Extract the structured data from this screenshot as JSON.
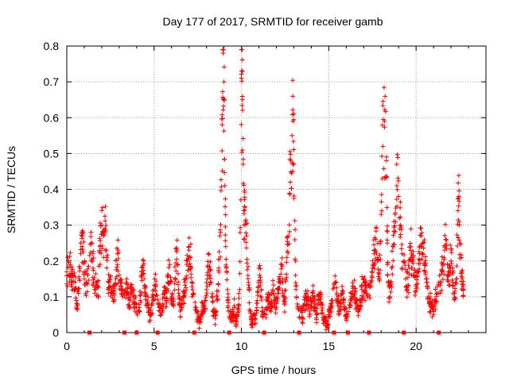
{
  "chart_data": {
    "type": "scatter",
    "title": "Day 177 of 2017, SRMTID for receiver gamb",
    "xlabel": "GPS time / hours",
    "ylabel": "SRMTID / TECUs",
    "xlim": [
      0,
      24
    ],
    "ylim": [
      0,
      0.8
    ],
    "xticks": [
      0,
      5,
      10,
      15,
      20
    ],
    "yticks": [
      0,
      0.1,
      0.2,
      0.3,
      0.4,
      0.5,
      0.6,
      0.7,
      0.8
    ],
    "xtick_labels": [
      "0",
      "5",
      "10",
      "15",
      "20"
    ],
    "ytick_labels": [
      "0",
      "0.1",
      "0.2",
      "0.3",
      "0.4",
      "0.5",
      "0.6",
      "0.7",
      "0.8"
    ],
    "grid": true,
    "marker": "plus",
    "color": "#ff0000",
    "zero_markers_x": [
      1.3,
      3.3,
      4.0,
      5.2,
      7.3,
      9.3,
      11.3,
      13.3,
      15.3,
      16.1,
      17.3,
      19.3,
      21.3
    ],
    "series": [
      {
        "name": "SRMTID",
        "points": [
          [
            0.0,
            0.17
          ],
          [
            0.1,
            0.16
          ],
          [
            0.2,
            0.19
          ],
          [
            0.3,
            0.14
          ],
          [
            0.4,
            0.16
          ],
          [
            0.5,
            0.12
          ],
          [
            0.6,
            0.08
          ],
          [
            0.7,
            0.15
          ],
          [
            0.8,
            0.22
          ],
          [
            0.9,
            0.27
          ],
          [
            1.0,
            0.17
          ],
          [
            1.1,
            0.14
          ],
          [
            1.2,
            0.16
          ],
          [
            1.4,
            0.25
          ],
          [
            1.5,
            0.18
          ],
          [
            1.6,
            0.12
          ],
          [
            1.7,
            0.14
          ],
          [
            1.8,
            0.1
          ],
          [
            1.9,
            0.24
          ],
          [
            2.0,
            0.3
          ],
          [
            2.1,
            0.27
          ],
          [
            2.2,
            0.29
          ],
          [
            2.3,
            0.21
          ],
          [
            2.4,
            0.14
          ],
          [
            2.5,
            0.13
          ],
          [
            2.6,
            0.11
          ],
          [
            2.7,
            0.11
          ],
          [
            2.8,
            0.15
          ],
          [
            2.9,
            0.22
          ],
          [
            3.0,
            0.16
          ],
          [
            3.1,
            0.13
          ],
          [
            3.2,
            0.1
          ],
          [
            3.4,
            0.14
          ],
          [
            3.5,
            0.11
          ],
          [
            3.6,
            0.09
          ],
          [
            3.7,
            0.12
          ],
          [
            3.8,
            0.1
          ],
          [
            3.9,
            0.08
          ],
          [
            4.1,
            0.06
          ],
          [
            4.2,
            0.09
          ],
          [
            4.3,
            0.16
          ],
          [
            4.4,
            0.2
          ],
          [
            4.5,
            0.11
          ],
          [
            4.6,
            0.08
          ],
          [
            4.7,
            0.06
          ],
          [
            4.8,
            0.05
          ],
          [
            4.9,
            0.08
          ],
          [
            5.0,
            0.12
          ],
          [
            5.1,
            0.13
          ],
          [
            5.3,
            0.07
          ],
          [
            5.4,
            0.05
          ],
          [
            5.5,
            0.08
          ],
          [
            5.6,
            0.11
          ],
          [
            5.7,
            0.09
          ],
          [
            5.8,
            0.14
          ],
          [
            5.9,
            0.19
          ],
          [
            6.0,
            0.1
          ],
          [
            6.1,
            0.08
          ],
          [
            6.2,
            0.15
          ],
          [
            6.3,
            0.23
          ],
          [
            6.4,
            0.11
          ],
          [
            6.5,
            0.06
          ],
          [
            6.6,
            0.08
          ],
          [
            6.7,
            0.1
          ],
          [
            6.8,
            0.15
          ],
          [
            6.9,
            0.2
          ],
          [
            7.0,
            0.24
          ],
          [
            7.1,
            0.21
          ],
          [
            7.2,
            0.12
          ],
          [
            7.4,
            0.07
          ],
          [
            7.5,
            0.04
          ],
          [
            7.6,
            0.03
          ],
          [
            7.7,
            0.05
          ],
          [
            7.8,
            0.08
          ],
          [
            7.9,
            0.06
          ],
          [
            8.0,
            0.12
          ],
          [
            8.1,
            0.22
          ],
          [
            8.2,
            0.16
          ],
          [
            8.3,
            0.1
          ],
          [
            8.4,
            0.06
          ],
          [
            8.5,
            0.04
          ],
          [
            8.6,
            0.09
          ],
          [
            8.7,
            0.18
          ],
          [
            8.8,
            0.28
          ],
          [
            8.9,
            0.58
          ],
          [
            8.95,
            0.78
          ],
          [
            9.0,
            0.7
          ],
          [
            9.05,
            0.41
          ],
          [
            9.1,
            0.24
          ],
          [
            9.2,
            0.12
          ],
          [
            9.25,
            0.06
          ],
          [
            9.4,
            0.04
          ],
          [
            9.5,
            0.05
          ],
          [
            9.6,
            0.07
          ],
          [
            9.7,
            0.03
          ],
          [
            9.8,
            0.05
          ],
          [
            9.9,
            0.12
          ],
          [
            10.0,
            0.71
          ],
          [
            10.05,
            0.65
          ],
          [
            10.1,
            0.47
          ],
          [
            10.15,
            0.3
          ],
          [
            10.2,
            0.35
          ],
          [
            10.3,
            0.27
          ],
          [
            10.4,
            0.14
          ],
          [
            10.5,
            0.06
          ],
          [
            10.6,
            0.03
          ],
          [
            10.7,
            0.05
          ],
          [
            10.8,
            0.04
          ],
          [
            10.9,
            0.09
          ],
          [
            11.0,
            0.18
          ],
          [
            11.1,
            0.14
          ],
          [
            11.2,
            0.06
          ],
          [
            11.4,
            0.05
          ],
          [
            11.5,
            0.1
          ],
          [
            11.6,
            0.08
          ],
          [
            11.7,
            0.07
          ],
          [
            11.8,
            0.12
          ],
          [
            11.9,
            0.09
          ],
          [
            12.0,
            0.07
          ],
          [
            12.1,
            0.11
          ],
          [
            12.2,
            0.15
          ],
          [
            12.3,
            0.19
          ],
          [
            12.4,
            0.1
          ],
          [
            12.5,
            0.08
          ],
          [
            12.6,
            0.21
          ],
          [
            12.7,
            0.27
          ],
          [
            12.8,
            0.42
          ],
          [
            12.9,
            0.55
          ],
          [
            12.95,
            0.59
          ],
          [
            13.0,
            0.47
          ],
          [
            13.1,
            0.16
          ],
          [
            13.2,
            0.08
          ],
          [
            13.4,
            0.06
          ],
          [
            13.5,
            0.04
          ],
          [
            13.6,
            0.08
          ],
          [
            13.7,
            0.11
          ],
          [
            13.8,
            0.09
          ],
          [
            13.9,
            0.06
          ],
          [
            14.0,
            0.08
          ],
          [
            14.1,
            0.11
          ],
          [
            14.2,
            0.07
          ],
          [
            14.3,
            0.05
          ],
          [
            14.4,
            0.09
          ],
          [
            14.5,
            0.1
          ],
          [
            14.6,
            0.08
          ],
          [
            14.7,
            0.04
          ],
          [
            14.8,
            0.03
          ],
          [
            14.9,
            0.02
          ],
          [
            15.0,
            0.05
          ],
          [
            15.1,
            0.07
          ],
          [
            15.2,
            0.09
          ],
          [
            15.4,
            0.14
          ],
          [
            15.5,
            0.09
          ],
          [
            15.6,
            0.06
          ],
          [
            15.7,
            0.08
          ],
          [
            15.8,
            0.11
          ],
          [
            15.9,
            0.07
          ],
          [
            16.0,
            0.05
          ],
          [
            16.2,
            0.07
          ],
          [
            16.3,
            0.1
          ],
          [
            16.4,
            0.13
          ],
          [
            16.5,
            0.11
          ],
          [
            16.6,
            0.08
          ],
          [
            16.7,
            0.06
          ],
          [
            16.8,
            0.09
          ],
          [
            16.9,
            0.12
          ],
          [
            17.0,
            0.15
          ],
          [
            17.1,
            0.13
          ],
          [
            17.2,
            0.1
          ],
          [
            17.4,
            0.14
          ],
          [
            17.5,
            0.18
          ],
          [
            17.6,
            0.22
          ],
          [
            17.7,
            0.26
          ],
          [
            17.8,
            0.2
          ],
          [
            17.9,
            0.15
          ],
          [
            18.0,
            0.33
          ],
          [
            18.1,
            0.52
          ],
          [
            18.2,
            0.59
          ],
          [
            18.3,
            0.48
          ],
          [
            18.35,
            0.25
          ],
          [
            18.4,
            0.14
          ],
          [
            18.5,
            0.1
          ],
          [
            18.6,
            0.18
          ],
          [
            18.7,
            0.24
          ],
          [
            18.8,
            0.33
          ],
          [
            18.9,
            0.41
          ],
          [
            19.0,
            0.38
          ],
          [
            19.1,
            0.3
          ],
          [
            19.2,
            0.22
          ],
          [
            19.4,
            0.15
          ],
          [
            19.5,
            0.12
          ],
          [
            19.6,
            0.18
          ],
          [
            19.7,
            0.24
          ],
          [
            19.8,
            0.2
          ],
          [
            19.9,
            0.16
          ],
          [
            20.0,
            0.13
          ],
          [
            20.1,
            0.17
          ],
          [
            20.2,
            0.22
          ],
          [
            20.3,
            0.27
          ],
          [
            20.4,
            0.25
          ],
          [
            20.5,
            0.19
          ],
          [
            20.6,
            0.14
          ],
          [
            20.7,
            0.1
          ],
          [
            20.8,
            0.08
          ],
          [
            20.9,
            0.07
          ],
          [
            21.0,
            0.06
          ],
          [
            21.1,
            0.09
          ],
          [
            21.2,
            0.11
          ],
          [
            21.4,
            0.14
          ],
          [
            21.5,
            0.17
          ],
          [
            21.6,
            0.21
          ],
          [
            21.7,
            0.26
          ],
          [
            21.8,
            0.19
          ],
          [
            21.9,
            0.16
          ],
          [
            22.0,
            0.2
          ],
          [
            22.1,
            0.14
          ],
          [
            22.2,
            0.11
          ],
          [
            22.3,
            0.15
          ],
          [
            22.4,
            0.34
          ],
          [
            22.45,
            0.38
          ],
          [
            22.5,
            0.25
          ],
          [
            22.6,
            0.17
          ],
          [
            22.7,
            0.12
          ]
        ]
      }
    ]
  }
}
